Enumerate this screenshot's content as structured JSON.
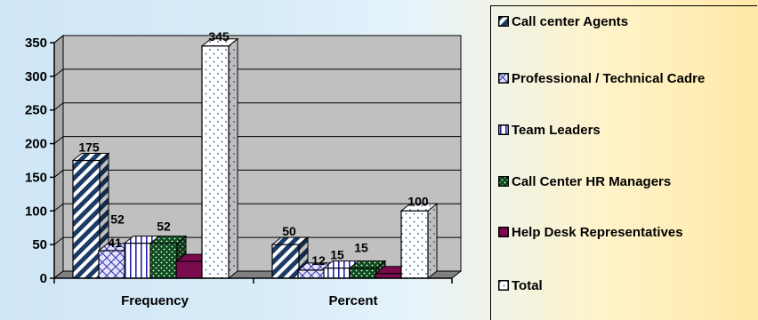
{
  "colors": {
    "agents_fill": "#1c3a66",
    "professional_fill": "#d8d8ff",
    "team_fill": "#ffffff",
    "team_stripe": "#2222aa",
    "hr_fill": "#0b4d1c",
    "help_fill": "#7a0b4d",
    "total_fill": "#ffffff",
    "plot_bg": "#c0c0c0",
    "floor": "#808080"
  },
  "chart_data": {
    "type": "bar",
    "title": "",
    "xlabel": "",
    "ylabel": "",
    "ylim": [
      0,
      350
    ],
    "yticks": [
      0,
      50,
      100,
      150,
      200,
      250,
      300,
      350
    ],
    "categories": [
      "Frequency",
      "Percent"
    ],
    "grid": true,
    "legend_position": "right",
    "series": [
      {
        "name": "Call center Agents",
        "values": [
          175,
          50
        ],
        "labels": [
          "175",
          "50"
        ],
        "pattern": "diagonal"
      },
      {
        "name": "Professional / Technical Cadre",
        "values": [
          41,
          12
        ],
        "labels": [
          "41",
          "12"
        ],
        "pattern": "crosshatch"
      },
      {
        "name": "Team Leaders",
        "values": [
          52,
          15
        ],
        "labels": [
          "52",
          "15"
        ],
        "pattern": "vertical"
      },
      {
        "name": "Call Center HR Managers",
        "values": [
          52,
          15
        ],
        "labels": [
          "52",
          "15"
        ],
        "pattern": "dots-dark"
      },
      {
        "name": "Help Desk Representatives",
        "values": [
          25,
          7
        ],
        "labels": [
          "",
          ""
        ],
        "pattern": "solid"
      },
      {
        "name": "Total",
        "values": [
          345,
          100
        ],
        "labels": [
          "345",
          "100"
        ],
        "pattern": "dots-light"
      }
    ]
  }
}
